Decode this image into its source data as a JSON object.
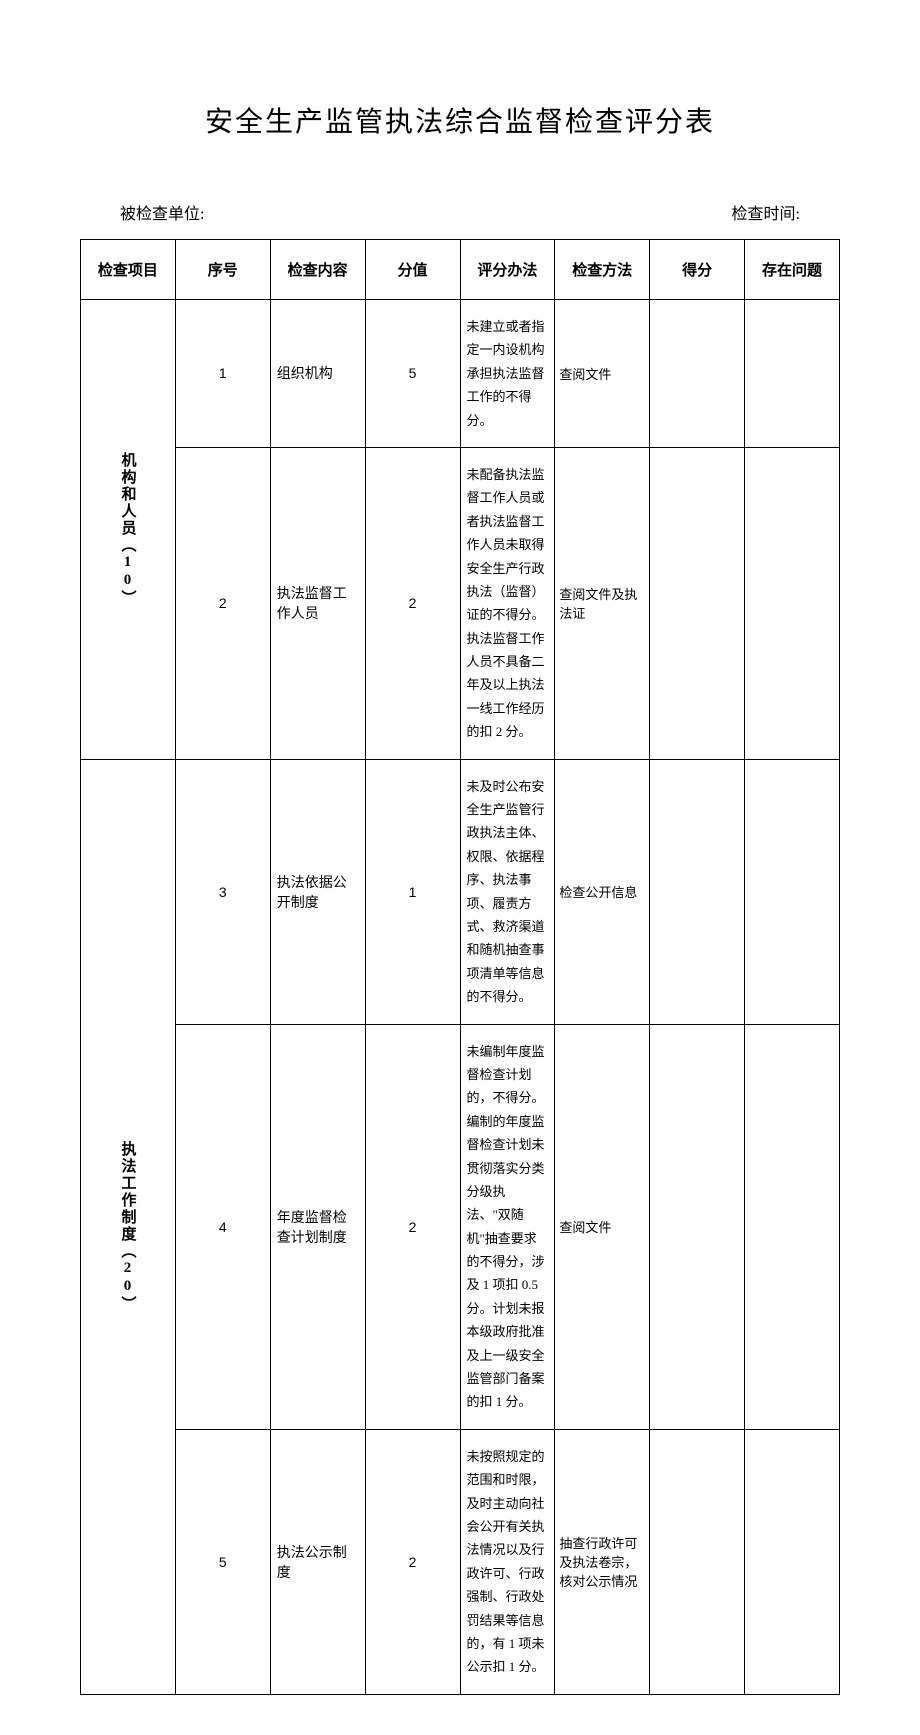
{
  "title": "安全生产监管执法综合监督检查评分表",
  "meta": {
    "unit_label": "被检查单位:",
    "time_label": "检查时间:"
  },
  "headers": {
    "category": "检查项目",
    "seq": "序号",
    "content": "检查内容",
    "score": "分值",
    "method": "评分办法",
    "check": "检查方法",
    "result": "得分",
    "problem": "存在问题"
  },
  "categories": {
    "cat1": "机构和人员︵10︶",
    "cat2": "执法工作制度︵20︶"
  },
  "rows": [
    {
      "seq": "1",
      "content": "组织机构",
      "score": "5",
      "method": "未建立或者指定一内设机构承担执法监督工作的不得分。",
      "check": "查阅文件"
    },
    {
      "seq": "2",
      "content": "执法监督工作人员",
      "score": "2",
      "method": "未配备执法监督工作人员或者执法监督工作人员未取得安全生产行政执法（监督）证的不得分。执法监督工作人员不具备二年及以上执法一线工作经历的扣 2 分。",
      "check": "查阅文件及执法证"
    },
    {
      "seq": "3",
      "content": "执法依据公开制度",
      "score": "1",
      "method": "未及时公布安全生产监管行政执法主体、权限、依据程序、执法事项、履责方式、救济渠道和随机抽查事项清单等信息的不得分。",
      "check": "检查公开信息"
    },
    {
      "seq": "4",
      "content": "年度监督检查计划制度",
      "score": "2",
      "method": "未编制年度监督检查计划的，不得分。编制的年度监督检查计划未贯彻落实分类分级执法、\"双随机\"抽查要求的不得分，涉及 1 项扣 0.5 分。计划未报本级政府批准及上一级安全监管部门备案的扣 1 分。",
      "check": "查阅文件"
    },
    {
      "seq": "5",
      "content": "执法公示制度",
      "score": "2",
      "method": "未按照规定的范围和时限，及时主动向社会公开有关执法情况以及行政许可、行政强制、行政处罚结果等信息的，有 1 项未公示扣 1 分。",
      "check": "抽查行政许可及执法卷宗，核对公示情况"
    }
  ],
  "styling": {
    "background_color": "#ffffff",
    "border_color": "#000000",
    "title_fontsize": 28,
    "header_fontsize": 15,
    "cell_fontsize": 13,
    "font_family": "SimSun"
  }
}
